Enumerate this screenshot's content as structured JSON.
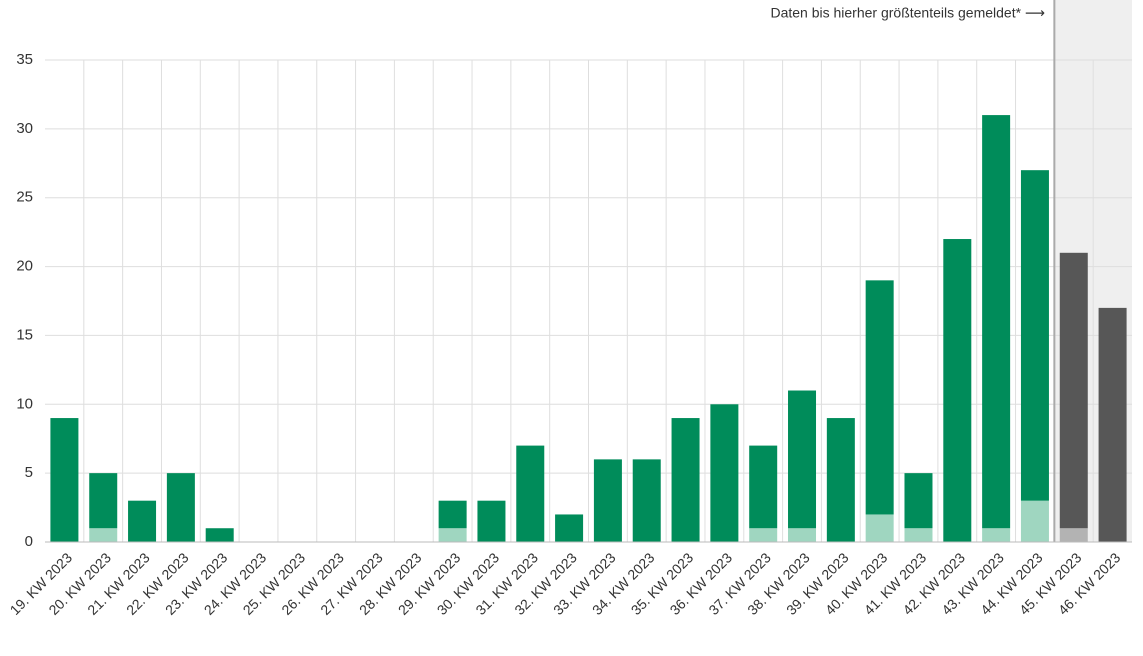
{
  "chart_data": {
    "type": "bar",
    "stacked": true,
    "annotation": "Daten bis hierher größtenteils gemeldet* ⟶",
    "categories": [
      "19. KW 2023",
      "20. KW 2023",
      "21. KW 2023",
      "22. KW 2023",
      "23. KW 2023",
      "24. KW 2023",
      "25. KW 2023",
      "26. KW 2023",
      "27. KW 2023",
      "28. KW 2023",
      "29. KW 2023",
      "30. KW 2023",
      "31. KW 2023",
      "32. KW 2023",
      "33. KW 2023",
      "34. KW 2023",
      "35. KW 2023",
      "36. KW 2023",
      "37. KW 2023",
      "38. KW 2023",
      "39. KW 2023",
      "40. KW 2023",
      "41. KW 2023",
      "42. KW 2023",
      "43. KW 2023",
      "44. KW 2023",
      "45. KW 2023",
      "46. KW 2023"
    ],
    "series": [
      {
        "color": "#9fd6c0",
        "values": [
          0,
          1,
          0,
          0,
          0,
          0,
          0,
          0,
          0,
          0,
          1,
          0,
          0,
          0,
          0,
          0,
          0,
          0,
          1,
          1,
          0,
          2,
          1,
          0,
          1,
          3,
          null,
          null
        ]
      },
      {
        "color": "#008c5a",
        "values": [
          9,
          4,
          3,
          5,
          1,
          0,
          0,
          0,
          0,
          0,
          2,
          3,
          7,
          2,
          6,
          6,
          9,
          10,
          6,
          10,
          9,
          17,
          4,
          22,
          30,
          24,
          null,
          null
        ]
      },
      {
        "color": "#b3b3b3",
        "values": [
          null,
          null,
          null,
          null,
          null,
          null,
          null,
          null,
          null,
          null,
          null,
          null,
          null,
          null,
          null,
          null,
          null,
          null,
          null,
          null,
          null,
          null,
          null,
          null,
          null,
          null,
          1,
          0
        ]
      },
      {
        "color": "#575757",
        "values": [
          null,
          null,
          null,
          null,
          null,
          null,
          null,
          null,
          null,
          null,
          null,
          null,
          null,
          null,
          null,
          null,
          null,
          null,
          null,
          null,
          null,
          null,
          null,
          null,
          null,
          null,
          20,
          17
        ]
      }
    ],
    "ylim": [
      0,
      35
    ],
    "yticks": [
      0,
      5,
      10,
      15,
      20,
      25,
      30,
      35
    ],
    "grid": true
  }
}
